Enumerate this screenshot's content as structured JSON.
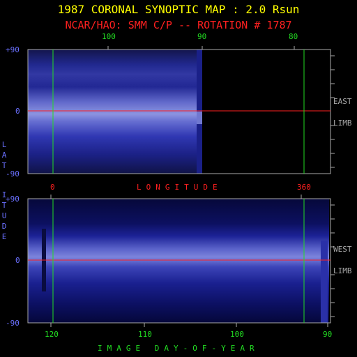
{
  "header": {
    "title": "1987 CORONAL SYNOPTIC MAP : 2.0 Rsun",
    "subtitle": "NCAR/HAO: SMM C/P -- ROTATION # 1787"
  },
  "top_panel": {
    "top_ticks": [
      "100",
      "90",
      "80"
    ],
    "lat_ticks": [
      "+90",
      "0",
      "-90"
    ],
    "side_labels": [
      "EAST",
      "LIMB"
    ]
  },
  "middle": {
    "longitude_ticks": [
      "0",
      "360"
    ],
    "longitude_label": "LONGITUDE"
  },
  "bottom_panel": {
    "lat_ticks": [
      "+90",
      "0",
      "-90"
    ],
    "side_labels": [
      "WEST",
      "LIMB"
    ],
    "bottom_ticks": [
      "120",
      "110",
      "100",
      "90"
    ]
  },
  "axis": {
    "latitude_label": "LATITUDE",
    "day_label": "IMAGE DAY-OF-YEAR"
  },
  "colors": {
    "title": "#ffff00",
    "subtitle": "#ff2020",
    "axis_blue": "#6a70ff",
    "marker_green": "#22dd22",
    "equator_red": "#ff2020",
    "frame_gray": "#aaaaaa"
  }
}
